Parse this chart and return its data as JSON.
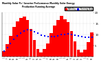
{
  "title": "Monthly Solar Pv / Inverter Performance Monthly Solar Energy Production Running Average",
  "bar_color": "#FF0000",
  "avg_color": "#0000FF",
  "background_color": "#FFFFFF",
  "grid_color": "#C0C0C0",
  "months": [
    "J",
    "F",
    "M",
    "A",
    "M",
    "J",
    "J",
    "A",
    "S",
    "O",
    "N",
    "D",
    "J",
    "F",
    "M",
    "A",
    "M",
    "J",
    "J",
    "A",
    "S",
    "O",
    "N",
    "D",
    "J",
    "F",
    "M"
  ],
  "values": [
    2.5,
    5.5,
    9.5,
    13.5,
    16.0,
    17.5,
    18.0,
    16.5,
    12.5,
    7.5,
    3.5,
    2.0,
    3.5,
    6.0,
    10.5,
    14.0,
    16.5,
    18.5,
    17.0,
    15.5,
    11.5,
    7.0,
    3.0,
    1.8,
    3.2,
    6.5,
    11.0
  ],
  "running_avg": [
    2.5,
    4.0,
    5.8,
    7.8,
    9.3,
    10.6,
    11.6,
    12.1,
    12.0,
    11.3,
    10.5,
    9.7,
    9.3,
    9.0,
    9.0,
    9.2,
    9.5,
    9.9,
    10.1,
    10.2,
    10.1,
    9.8,
    9.4,
    9.0,
    8.7,
    8.6,
    8.8
  ],
  "ylim": [
    0,
    20
  ],
  "ytick_vals": [
    5,
    10,
    15,
    20
  ],
  "ytick_labels": [
    "5",
    "10",
    "15",
    "20"
  ],
  "legend_label_bar": "kWh/Day",
  "legend_label_avg": "Running Avg"
}
